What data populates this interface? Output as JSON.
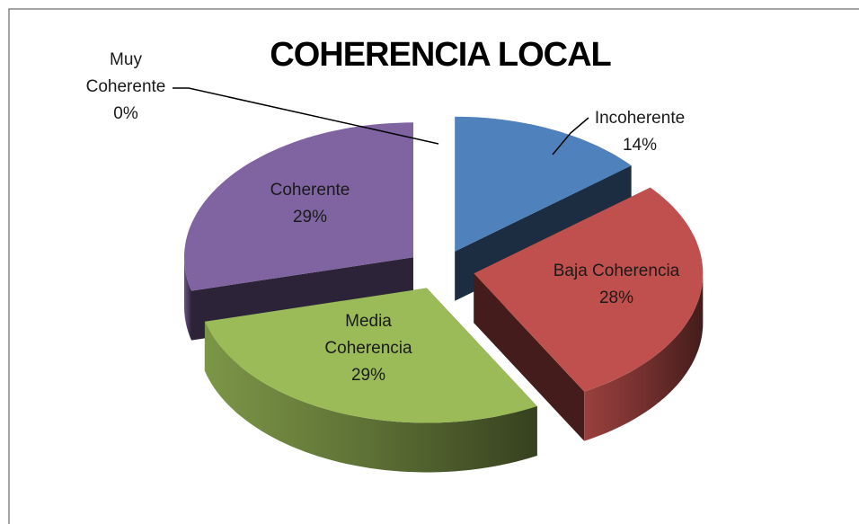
{
  "chart_data": {
    "type": "pie",
    "title": "COHERENCIA LOCAL",
    "categories": [
      "Incoherente",
      "Baja Coherencia",
      "Media Coherencia",
      "Coherente",
      "Muy Coherente"
    ],
    "values": [
      14,
      28,
      29,
      29,
      0
    ],
    "value_labels": [
      "14%",
      "28%",
      "29%",
      "29%",
      "0%"
    ],
    "colors": [
      "#4f81bd",
      "#c0504d",
      "#9bbb59",
      "#8064a2",
      "#4bacc6"
    ]
  }
}
